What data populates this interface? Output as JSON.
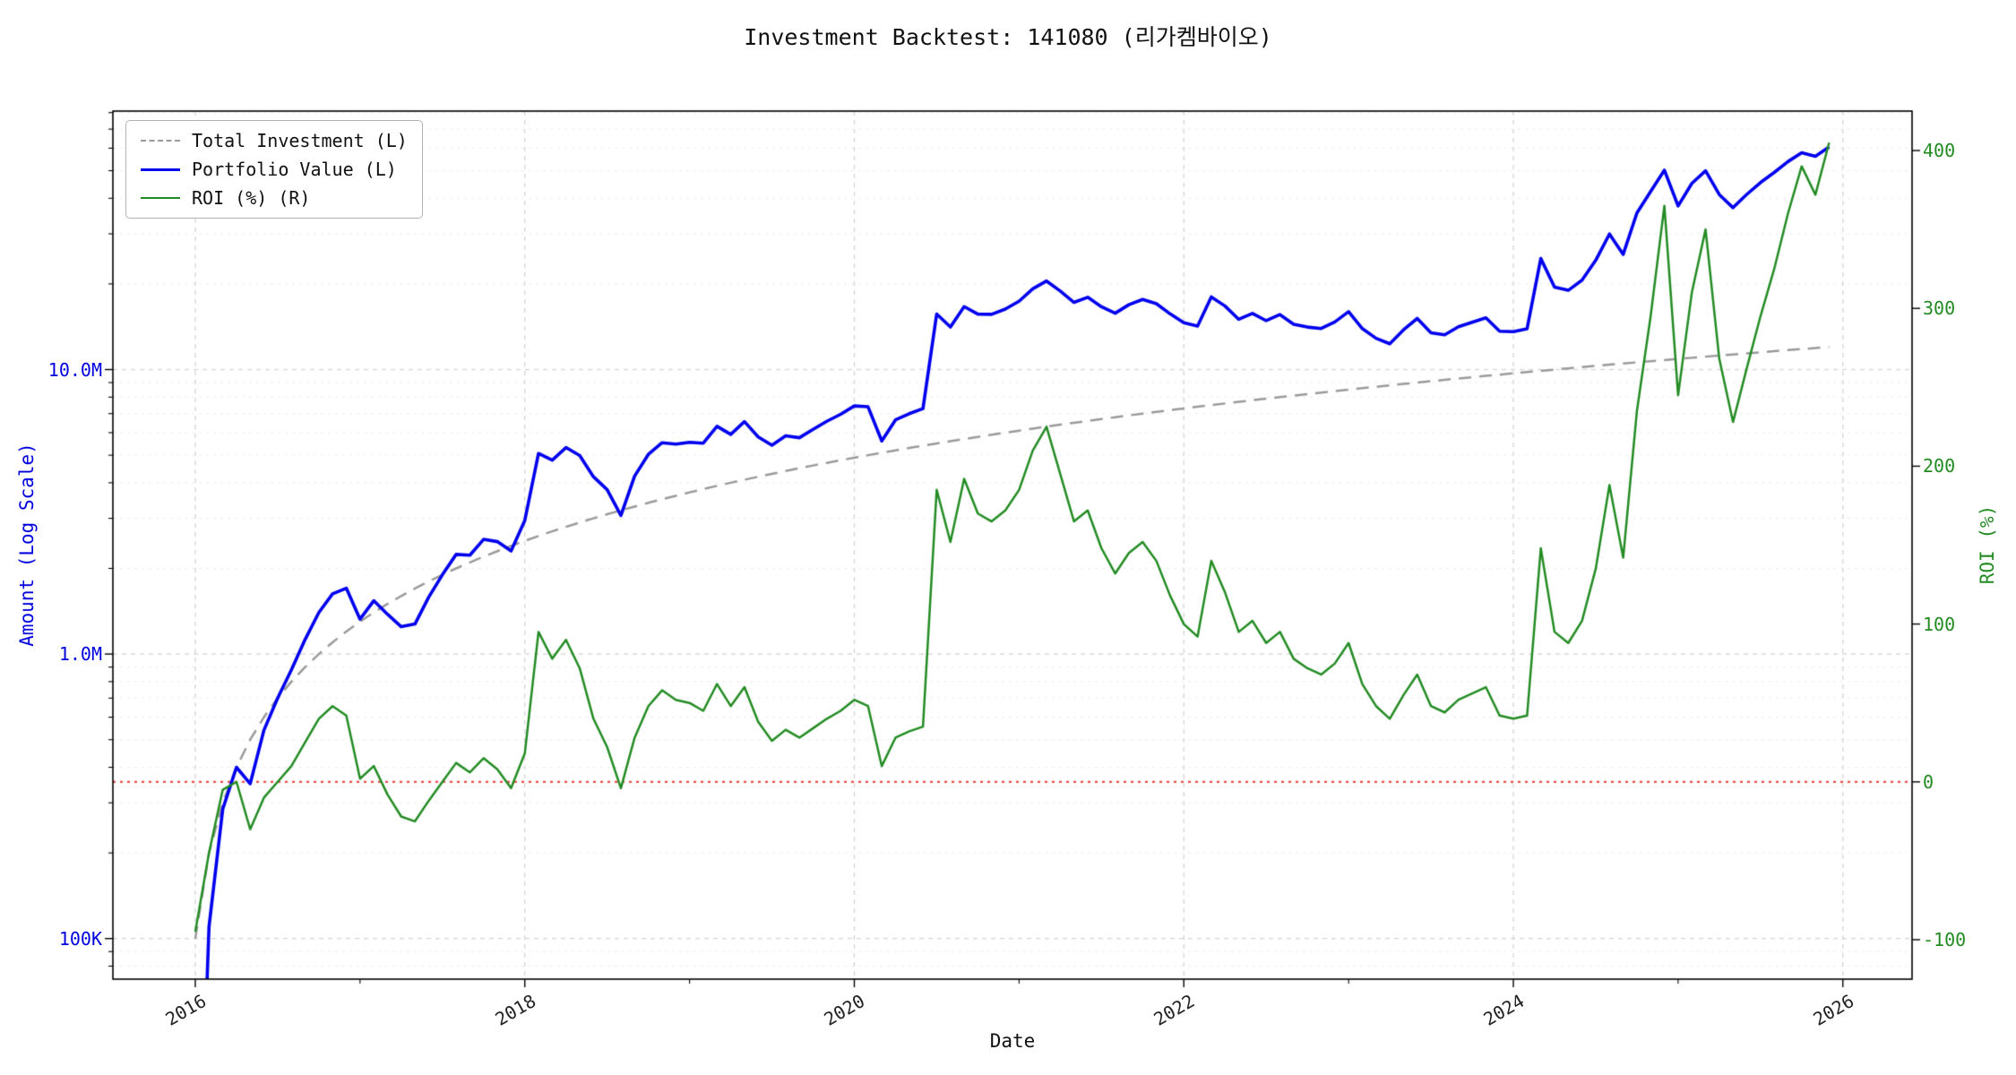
{
  "title": "Investment Backtest: 141080 (리가켐바이오)",
  "axes": {
    "x_label": "Date",
    "y_left_label": "Amount (Log Scale)",
    "y_right_label": "ROI (%)",
    "x_ticks": [
      {
        "value": 2016,
        "label": "2016"
      },
      {
        "value": 2018,
        "label": "2018"
      },
      {
        "value": 2020,
        "label": "2020"
      },
      {
        "value": 2022,
        "label": "2022"
      },
      {
        "value": 2024,
        "label": "2024"
      },
      {
        "value": 2026,
        "label": "2026"
      }
    ],
    "x_minor_ticks": [
      2017,
      2019,
      2021,
      2023,
      2025
    ],
    "y_left_ticks": [
      {
        "value": 100000,
        "label": "100K"
      },
      {
        "value": 1000000,
        "label": "1.0M"
      },
      {
        "value": 10000000,
        "label": "10.0M"
      }
    ],
    "y_right_ticks": [
      {
        "value": -100,
        "label": "-100"
      },
      {
        "value": 0,
        "label": "0"
      },
      {
        "value": 100,
        "label": "100"
      },
      {
        "value": 200,
        "label": "200"
      },
      {
        "value": 300,
        "label": "300"
      },
      {
        "value": 400,
        "label": "400"
      }
    ],
    "x_lim": [
      2015.5,
      2026.42
    ],
    "y_left_lim_log": [
      72000,
      81000000
    ],
    "y_right_lim": [
      -125,
      425
    ],
    "zero_roi_line": 0
  },
  "legend": [
    {
      "label": "Total Investment (L)",
      "color": "#9a9a9a",
      "dash": true
    },
    {
      "label": "Portfolio Value (L)",
      "color": "#0000ee",
      "dash": false
    },
    {
      "label": "ROI (%) (R)",
      "color": "#228b22",
      "dash": false
    }
  ],
  "colors": {
    "portfolio": "#0000ee",
    "investment": "#9a9a9a",
    "roi": "#228b22",
    "zero_line": "#ee3333",
    "left_axis_text": "#0000dd",
    "right_axis_text": "#228b22",
    "grid_major": "#d4d4d4",
    "grid_minor": "#ebebeb",
    "spine": "#000000"
  },
  "chart_data": {
    "type": "line",
    "x_unit": "month",
    "start": "2016-01",
    "months": 120,
    "monthly_contribution": 100000,
    "note": "total_investment[i] = monthly_contribution*(i+1); portfolio_value[i] = total_investment[i]*(1+roi_percent[i]/100); x[i] = 2016 + i/12",
    "series_names": [
      "Total Investment (L)",
      "Portfolio Value (L)",
      "ROI (%) (R)"
    ],
    "roi_percent": [
      -95,
      -45,
      -5,
      0,
      -30,
      -10,
      0,
      10,
      25,
      40,
      48,
      42,
      2,
      10,
      -8,
      -22,
      -25,
      -12,
      0,
      12,
      6,
      15,
      8,
      -4,
      18,
      95,
      78,
      90,
      72,
      40,
      22,
      -4,
      28,
      48,
      58,
      52,
      50,
      45,
      62,
      48,
      60,
      38,
      26,
      33,
      28,
      34,
      40,
      45,
      52,
      48,
      10,
      28,
      32,
      35,
      185,
      152,
      192,
      170,
      165,
      172,
      185,
      210,
      225,
      195,
      165,
      172,
      148,
      132,
      145,
      152,
      140,
      118,
      100,
      92,
      140,
      120,
      95,
      102,
      88,
      95,
      78,
      72,
      68,
      75,
      88,
      62,
      48,
      40,
      55,
      68,
      48,
      44,
      52,
      56,
      60,
      42,
      40,
      42,
      148,
      95,
      88,
      102,
      135,
      188,
      142,
      235,
      295,
      365,
      245,
      310,
      350,
      268,
      228,
      262,
      295,
      325,
      360,
      390,
      372,
      405
    ]
  }
}
